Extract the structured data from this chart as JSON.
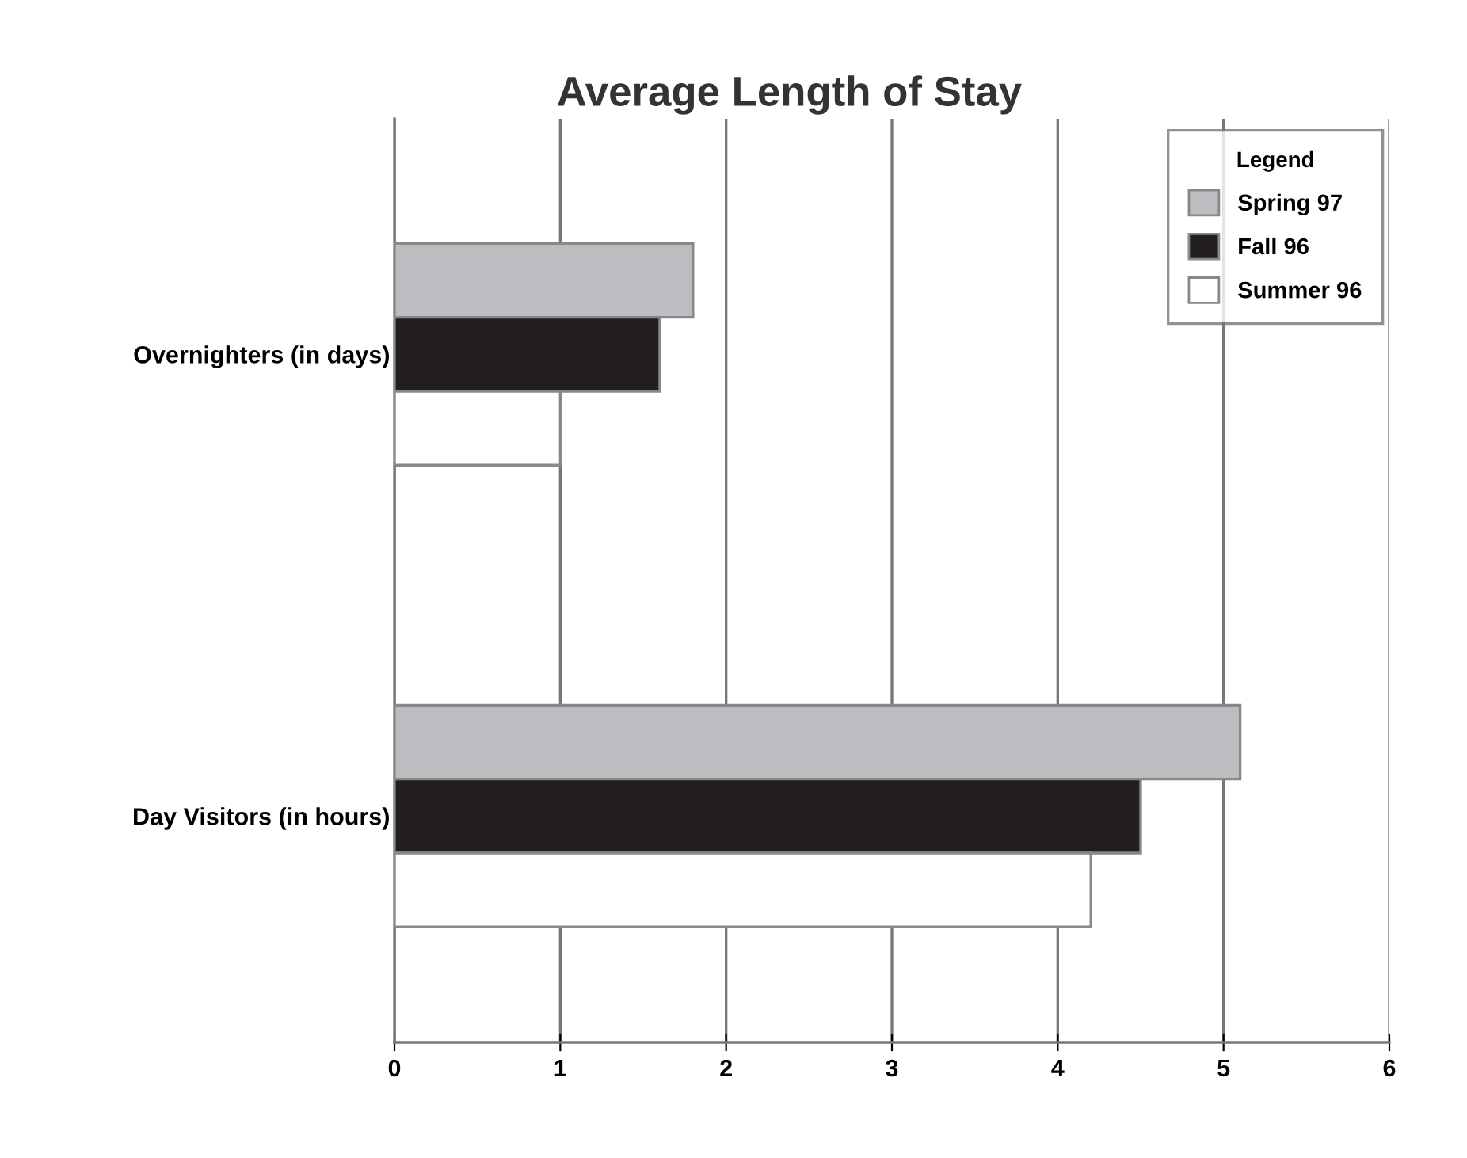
{
  "chart_data": {
    "type": "bar",
    "orientation": "horizontal",
    "title": "Average Length of Stay",
    "categories": [
      "Overnighters (in days)",
      "Day Visitors (in hours)"
    ],
    "series": [
      {
        "name": "Spring 97",
        "color": "#bcbdc0",
        "values": [
          1.8,
          5.1
        ]
      },
      {
        "name": "Fall 96",
        "color": "#231f20",
        "values": [
          1.6,
          4.5
        ]
      },
      {
        "name": "Summer 96",
        "color": "#ffffff",
        "values": [
          1.0,
          4.2
        ]
      }
    ],
    "xlim": [
      0,
      6
    ],
    "xticks": [
      0,
      1,
      2,
      3,
      4,
      5,
      6
    ],
    "grid": "x",
    "legend": "top right",
    "legend_title": "Legend"
  }
}
